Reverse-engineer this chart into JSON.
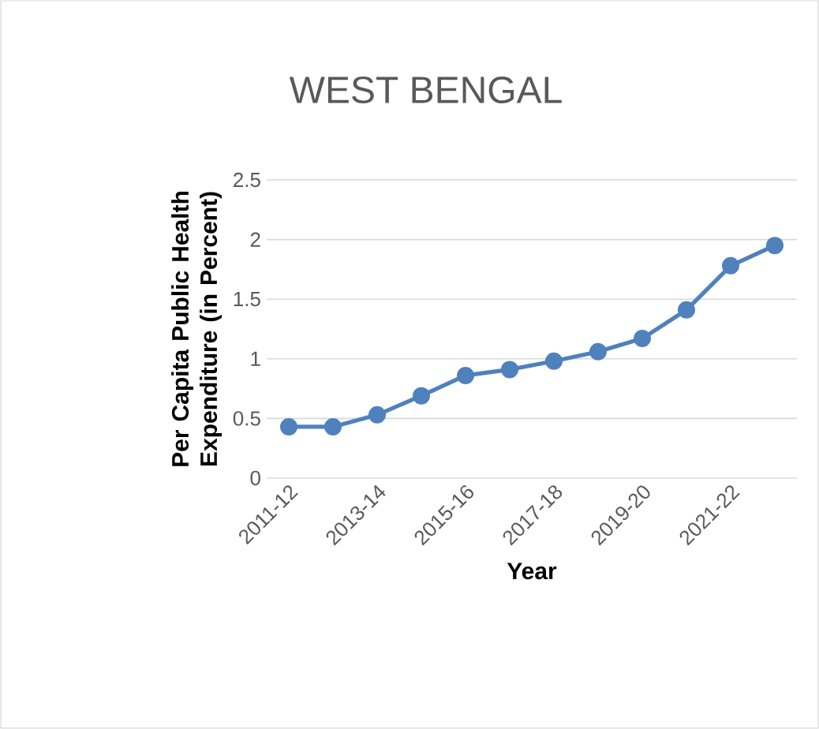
{
  "chart_data": {
    "type": "line",
    "title": "WEST BENGAL",
    "xlabel": "Year",
    "ylabel": "Per Capita Public Health Expenditure (in Percent)",
    "categories": [
      "2011-12",
      null,
      "2013-14",
      null,
      "2015-16",
      null,
      "2017-18",
      null,
      "2019-20",
      null,
      "2021-22",
      null
    ],
    "series": [
      {
        "color": "#4f81bd",
        "values": [
          0.43,
          0.43,
          0.53,
          0.69,
          0.86,
          0.91,
          0.98,
          1.06,
          1.17,
          1.41,
          1.78,
          1.95
        ]
      }
    ],
    "ylim": [
      0,
      2.5
    ],
    "yticks": [
      0,
      0.5,
      1,
      1.5,
      2,
      2.5
    ],
    "grid": "y",
    "marker": "circle",
    "line_style": "solid"
  }
}
